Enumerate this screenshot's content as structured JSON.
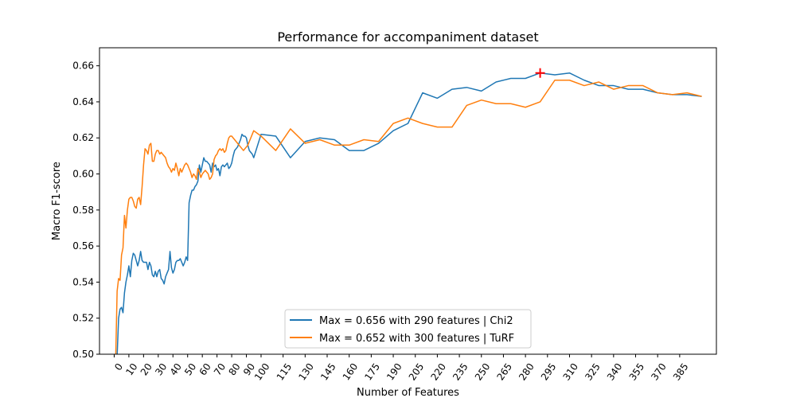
{
  "chart_data": {
    "type": "line",
    "title": "Performance for accompaniment dataset",
    "xlabel": "Number of Features",
    "ylabel": "Macro F1-score",
    "xlim": [
      -10,
      410
    ],
    "ylim": [
      0.5,
      0.67
    ],
    "x_ticks": [
      0,
      10,
      20,
      30,
      40,
      50,
      60,
      70,
      80,
      90,
      100,
      115,
      130,
      145,
      160,
      175,
      190,
      205,
      220,
      235,
      250,
      265,
      280,
      295,
      310,
      325,
      340,
      355,
      370,
      385
    ],
    "x_tick_labels": [
      "0",
      "10",
      "20",
      "30",
      "40",
      "50",
      "60",
      "70",
      "80",
      "90",
      "100",
      "115",
      "130",
      "145",
      "160",
      "175",
      "190",
      "205",
      "220",
      "235",
      "250",
      "265",
      "280",
      "295",
      "310",
      "325",
      "340",
      "355",
      "370",
      "385"
    ],
    "y_ticks": [
      0.5,
      0.52,
      0.54,
      0.56,
      0.58,
      0.6,
      0.62,
      0.64,
      0.66
    ],
    "y_tick_labels": [
      "0.50",
      "0.52",
      "0.54",
      "0.56",
      "0.58",
      "0.60",
      "0.62",
      "0.64",
      "0.66"
    ],
    "legend_position": "bottom-center",
    "grid": false,
    "series": [
      {
        "name": "Max = 0.656 with 290 features | Chi2",
        "color": "#1f77b4",
        "x": [
          1,
          2,
          3,
          4,
          5,
          6,
          7,
          8,
          9,
          10,
          11,
          12,
          13,
          14,
          15,
          16,
          17,
          18,
          19,
          20,
          21,
          22,
          23,
          24,
          25,
          26,
          27,
          28,
          29,
          30,
          31,
          32,
          33,
          34,
          35,
          36,
          37,
          38,
          39,
          40,
          41,
          42,
          43,
          44,
          45,
          46,
          47,
          48,
          49,
          50,
          51,
          52,
          53,
          54,
          55,
          56,
          57,
          58,
          59,
          60,
          61,
          62,
          63,
          64,
          65,
          66,
          67,
          68,
          69,
          70,
          71,
          72,
          73,
          74,
          75,
          76,
          77,
          78,
          79,
          80,
          81,
          82,
          83,
          84,
          85,
          86,
          87,
          88,
          89,
          90,
          91,
          92,
          93,
          94,
          95,
          100,
          110,
          120,
          130,
          140,
          150,
          160,
          170,
          180,
          190,
          200,
          210,
          220,
          230,
          240,
          250,
          260,
          270,
          280,
          290,
          300,
          310,
          320,
          330,
          340,
          350,
          360,
          370,
          380,
          390,
          400
        ],
        "values": [
          0.497,
          0.499,
          0.52,
          0.525,
          0.526,
          0.523,
          0.534,
          0.54,
          0.544,
          0.549,
          0.543,
          0.552,
          0.556,
          0.555,
          0.552,
          0.549,
          0.552,
          0.557,
          0.552,
          0.551,
          0.551,
          0.551,
          0.547,
          0.551,
          0.549,
          0.544,
          0.543,
          0.546,
          0.543,
          0.546,
          0.547,
          0.542,
          0.541,
          0.539,
          0.543,
          0.545,
          0.547,
          0.557,
          0.548,
          0.545,
          0.547,
          0.551,
          0.552,
          0.552,
          0.553,
          0.551,
          0.549,
          0.551,
          0.554,
          0.552,
          0.584,
          0.588,
          0.591,
          0.591,
          0.593,
          0.594,
          0.596,
          0.605,
          0.601,
          0.605,
          0.609,
          0.607,
          0.607,
          0.606,
          0.605,
          0.601,
          0.606,
          0.604,
          0.605,
          0.602,
          0.603,
          0.599,
          0.604,
          0.605,
          0.604,
          0.605,
          0.606,
          0.603,
          0.604,
          0.606,
          0.61,
          0.613,
          0.614,
          0.615,
          0.617,
          0.619,
          0.622,
          0.621,
          0.621,
          0.62,
          0.616,
          0.613,
          0.612,
          0.611,
          0.609,
          0.622,
          0.621,
          0.609,
          0.618,
          0.62,
          0.619,
          0.613,
          0.613,
          0.617,
          0.624,
          0.628,
          0.645,
          0.642,
          0.647,
          0.648,
          0.646,
          0.651,
          0.653,
          0.653,
          0.656,
          0.655,
          0.656,
          0.652,
          0.649,
          0.649,
          0.647,
          0.647,
          0.645,
          0.644,
          0.644,
          0.643
        ]
      },
      {
        "name": "Max = 0.652 with 300 features | TuRF",
        "color": "#ff7f0e",
        "x": [
          1,
          2,
          3,
          4,
          5,
          6,
          7,
          8,
          9,
          10,
          11,
          12,
          13,
          14,
          15,
          16,
          17,
          18,
          19,
          20,
          21,
          22,
          23,
          24,
          25,
          26,
          27,
          28,
          29,
          30,
          31,
          32,
          33,
          34,
          35,
          36,
          37,
          38,
          39,
          40,
          41,
          42,
          43,
          44,
          45,
          46,
          47,
          48,
          49,
          50,
          51,
          52,
          53,
          54,
          55,
          56,
          57,
          58,
          59,
          60,
          61,
          62,
          63,
          64,
          65,
          66,
          67,
          68,
          69,
          70,
          71,
          72,
          73,
          74,
          75,
          76,
          77,
          78,
          79,
          80,
          81,
          82,
          83,
          84,
          85,
          86,
          87,
          88,
          89,
          90,
          91,
          92,
          93,
          94,
          95,
          100,
          110,
          120,
          130,
          140,
          150,
          160,
          170,
          180,
          190,
          200,
          210,
          220,
          230,
          240,
          250,
          260,
          270,
          280,
          290,
          300,
          310,
          320,
          330,
          340,
          350,
          360,
          370,
          380,
          390,
          400
        ],
        "values": [
          0.497,
          0.535,
          0.542,
          0.541,
          0.555,
          0.559,
          0.577,
          0.57,
          0.58,
          0.586,
          0.587,
          0.587,
          0.585,
          0.582,
          0.581,
          0.586,
          0.587,
          0.583,
          0.593,
          0.605,
          0.614,
          0.613,
          0.611,
          0.616,
          0.617,
          0.607,
          0.607,
          0.611,
          0.613,
          0.613,
          0.611,
          0.612,
          0.611,
          0.61,
          0.609,
          0.606,
          0.604,
          0.603,
          0.601,
          0.603,
          0.602,
          0.606,
          0.603,
          0.599,
          0.603,
          0.601,
          0.603,
          0.605,
          0.606,
          0.605,
          0.603,
          0.601,
          0.598,
          0.6,
          0.599,
          0.597,
          0.603,
          0.601,
          0.598,
          0.6,
          0.601,
          0.602,
          0.601,
          0.6,
          0.597,
          0.598,
          0.6,
          0.608,
          0.61,
          0.611,
          0.613,
          0.614,
          0.613,
          0.614,
          0.612,
          0.613,
          0.617,
          0.62,
          0.621,
          0.621,
          0.62,
          0.619,
          0.618,
          0.617,
          0.616,
          0.615,
          0.614,
          0.613,
          0.614,
          0.615,
          0.616,
          0.618,
          0.62,
          0.622,
          0.624,
          0.621,
          0.613,
          0.625,
          0.617,
          0.619,
          0.616,
          0.616,
          0.619,
          0.618,
          0.628,
          0.631,
          0.628,
          0.626,
          0.626,
          0.638,
          0.641,
          0.639,
          0.639,
          0.637,
          0.64,
          0.652,
          0.652,
          0.649,
          0.651,
          0.647,
          0.649,
          0.649,
          0.645,
          0.644,
          0.645,
          0.643
        ]
      }
    ],
    "marker": {
      "x": 290,
      "y": 0.656,
      "shape": "plus",
      "color": "#ff0000"
    }
  }
}
